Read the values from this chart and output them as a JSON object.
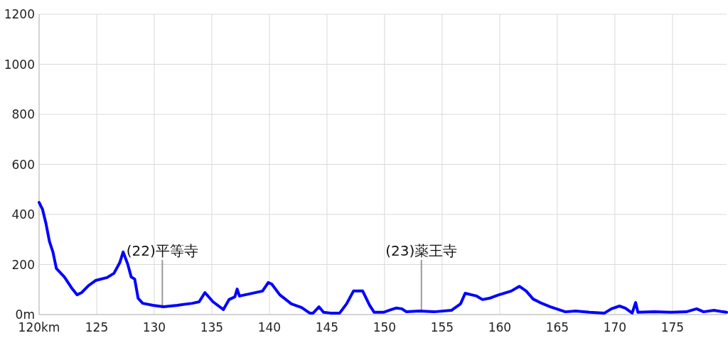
{
  "chart_data": {
    "type": "line",
    "x": [
      120,
      120.3,
      120.6,
      120.9,
      121.2,
      121.5,
      122.2,
      122.8,
      123.3,
      123.7,
      124.3,
      124.9,
      125.9,
      126.5,
      127.0,
      127.3,
      127.7,
      128.0,
      128.3,
      128.6,
      129.0,
      129.9,
      130.8,
      132.0,
      133.3,
      133.9,
      134.4,
      135.1,
      136.0,
      136.5,
      137.0,
      137.2,
      137.4,
      138.2,
      139.4,
      139.9,
      140.2,
      140.9,
      141.9,
      142.8,
      143.5,
      143.8,
      144.3,
      144.7,
      145.3,
      146.1,
      146.7,
      147.3,
      148.1,
      148.7,
      149.1,
      149.9,
      150.6,
      151.0,
      151.5,
      151.9,
      153.0,
      154.3,
      155.8,
      156.6,
      157.0,
      158.0,
      158.5,
      159.1,
      159.8,
      161.0,
      161.7,
      162.3,
      162.9,
      163.5,
      164.4,
      165.1,
      165.7,
      166.6,
      167.8,
      169.1,
      169.7,
      170.4,
      170.9,
      171.5,
      171.8,
      172.0,
      173.4,
      174.9,
      176.2,
      177.1,
      177.7,
      178.6,
      179.7
    ],
    "series": [
      {
        "color": "#0000ff",
        "values": [
          448,
          420,
          363,
          292,
          250,
          184,
          150,
          108,
          79,
          88,
          116,
          136,
          148,
          165,
          207,
          250,
          201,
          150,
          142,
          65,
          45,
          37,
          31,
          37,
          45,
          51,
          88,
          51,
          20,
          60,
          71,
          102,
          74,
          82,
          94,
          128,
          122,
          79,
          43,
          28,
          6,
          6,
          31,
          9,
          6,
          6,
          43,
          94,
          94,
          37,
          9,
          9,
          20,
          26,
          23,
          11,
          14,
          11,
          17,
          43,
          85,
          74,
          60,
          65,
          77,
          94,
          113,
          94,
          62,
          48,
          31,
          20,
          11,
          14,
          9,
          6,
          23,
          34,
          26,
          6,
          48,
          9,
          11,
          9,
          11,
          23,
          11,
          17,
          9
        ]
      }
    ],
    "xlim": [
      120,
      179.7
    ],
    "xticks": [
      {
        "value": 120,
        "label": "120km"
      },
      125,
      130,
      135,
      140,
      145,
      150,
      155,
      160,
      165,
      170,
      175
    ],
    "ylim": [
      0,
      1200
    ],
    "yticks": [
      {
        "value": 0,
        "label": "0m"
      },
      200,
      400,
      600,
      800,
      1000,
      1200
    ],
    "grid": true,
    "annotations": [
      {
        "text": "(22)平等寺",
        "x": 130.7,
        "y": 31
      },
      {
        "text": "(23)薬王寺",
        "x": 153.2,
        "y": 14
      }
    ]
  }
}
